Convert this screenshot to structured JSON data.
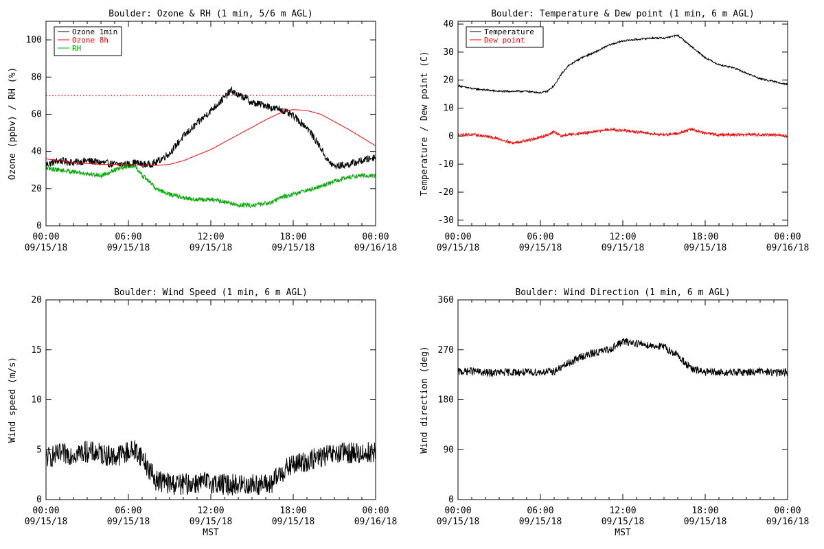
{
  "chart_data": [
    {
      "id": "ozone_rh",
      "type": "line",
      "title": "Boulder: Ozone & RH (1 min, 5/6 m AGL)",
      "xlabel": "",
      "ylabel": "Ozone (ppbv) / RH (%)",
      "ylim": [
        0,
        110
      ],
      "yticks": [
        0,
        20,
        40,
        60,
        80,
        100
      ],
      "xlim_hours": [
        0,
        24
      ],
      "xticks": [
        {
          "time": "00:00",
          "date": "09/15/18"
        },
        {
          "time": "06:00",
          "date": "09/15/18"
        },
        {
          "time": "12:00",
          "date": "09/15/18"
        },
        {
          "time": "18:00",
          "date": "09/15/18"
        },
        {
          "time": "00:00",
          "date": "09/16/18"
        }
      ],
      "reference_line": {
        "y": 70,
        "color": "#ff0000",
        "style": "dotted"
      },
      "legend": {
        "placement": "top-left"
      },
      "series": [
        {
          "name": "Ozone 1min",
          "color": "#000000",
          "noise": 2.0,
          "x": [
            0,
            1,
            2,
            3,
            4,
            5,
            6,
            6.5,
            7,
            7.5,
            8,
            9,
            10,
            11,
            12,
            13,
            13.5,
            14,
            14.5,
            15,
            16,
            16.5,
            17,
            17.5,
            18,
            18.5,
            19,
            20,
            20.5,
            21,
            22,
            23,
            24
          ],
          "y": [
            33,
            35,
            34,
            35,
            34,
            33,
            33,
            34,
            33,
            33,
            34,
            39,
            48,
            55,
            62,
            69,
            73,
            70,
            69,
            66,
            65,
            63,
            63,
            61,
            59,
            56,
            53,
            42,
            35,
            32,
            33,
            35,
            37
          ]
        },
        {
          "name": "Ozone 8h",
          "color": "#ff0000",
          "noise": 0,
          "x": [
            0,
            2,
            4,
            6,
            7,
            8,
            9,
            10,
            11,
            12,
            13,
            14,
            15,
            16,
            17,
            17.5,
            18,
            19,
            20,
            21,
            22,
            23,
            24
          ],
          "y": [
            36,
            34,
            33,
            33,
            32.5,
            32.5,
            33,
            35,
            38,
            41,
            45,
            49,
            53,
            57,
            60.5,
            62,
            62.5,
            62,
            60,
            56,
            52,
            47.5,
            43
          ]
        },
        {
          "name": "RH",
          "color": "#00aa00",
          "noise": 1.2,
          "x": [
            0,
            1,
            2,
            3,
            4,
            5,
            6,
            6.5,
            7,
            7.5,
            8,
            9,
            10,
            11,
            12,
            13,
            14,
            15,
            16,
            16.5,
            17,
            18,
            19,
            20,
            21,
            22,
            23,
            24
          ],
          "y": [
            31,
            30,
            29,
            28,
            27,
            30,
            32,
            32,
            27,
            24,
            20,
            17,
            15,
            14,
            14,
            13,
            11,
            11,
            12,
            13,
            15,
            17,
            19,
            21,
            24,
            26,
            27,
            27
          ]
        }
      ]
    },
    {
      "id": "temp_dew",
      "type": "line",
      "title": "Boulder: Temperature & Dew point (1 min, 6 m AGL)",
      "xlabel": "",
      "ylabel": "Temperature / Dew point (C)",
      "ylim": [
        -32,
        41
      ],
      "yticks": [
        -30,
        -20,
        -10,
        0,
        10,
        20,
        30,
        40
      ],
      "xlim_hours": [
        0,
        24
      ],
      "xticks": [
        {
          "time": "00:00",
          "date": "09/15/18"
        },
        {
          "time": "06:00",
          "date": "09/15/18"
        },
        {
          "time": "12:00",
          "date": "09/15/18"
        },
        {
          "time": "18:00",
          "date": "09/15/18"
        },
        {
          "time": "00:00",
          "date": "09/16/18"
        }
      ],
      "legend": {
        "placement": "top-left"
      },
      "series": [
        {
          "name": "Temperature",
          "color": "#000000",
          "noise": 0.3,
          "x": [
            0,
            1,
            2,
            3,
            4,
            5,
            6,
            6.5,
            7,
            7.5,
            8,
            9,
            10,
            11,
            12,
            13,
            14,
            15,
            16,
            17,
            18,
            19,
            20,
            21,
            22,
            23,
            24
          ],
          "y": [
            18,
            17,
            16.5,
            16,
            16,
            16,
            15.5,
            16,
            18,
            22,
            25,
            28,
            30,
            32.5,
            34,
            34.5,
            35,
            35,
            36,
            32,
            28,
            25.5,
            24.5,
            22.5,
            20.5,
            19.5,
            18.5
          ]
        },
        {
          "name": "Dew point",
          "color": "#ff0000",
          "noise": 0.5,
          "x": [
            0,
            1,
            2,
            3,
            4,
            5,
            6,
            6.5,
            7,
            7.5,
            8,
            9,
            10,
            11,
            12,
            13,
            14,
            15,
            16,
            17,
            18,
            19,
            20,
            21,
            22,
            23,
            24
          ],
          "y": [
            0.5,
            0.5,
            0,
            -1,
            -2.5,
            -1.5,
            -0.5,
            0.5,
            1.5,
            0,
            0.5,
            1,
            1.5,
            2.5,
            2,
            1.5,
            1,
            0.5,
            1,
            2.5,
            1,
            0.5,
            0.5,
            0.5,
            0.5,
            0.5,
            0
          ]
        }
      ]
    },
    {
      "id": "wind_speed",
      "type": "line",
      "title": "Boulder: Wind Speed (1 min, 6 m AGL)",
      "xlabel": "MST",
      "ylabel": "Wind speed (m/s)",
      "ylim": [
        0,
        20
      ],
      "yticks": [
        0,
        5,
        10,
        15,
        20
      ],
      "xlim_hours": [
        0,
        24
      ],
      "xticks": [
        {
          "time": "00:00",
          "date": "09/15/18"
        },
        {
          "time": "06:00",
          "date": "09/15/18"
        },
        {
          "time": "12:00",
          "date": "09/15/18"
        },
        {
          "time": "18:00",
          "date": "09/15/18"
        },
        {
          "time": "00:00",
          "date": "09/16/18"
        }
      ],
      "series": [
        {
          "name": "",
          "color": "#000000",
          "noise": 1.1,
          "x": [
            0,
            1,
            2,
            3,
            4,
            5,
            6,
            6.5,
            7,
            7.5,
            8,
            9,
            10,
            11,
            12,
            13,
            14,
            15,
            16,
            16.5,
            17,
            18,
            19,
            20,
            21,
            22,
            23,
            24
          ],
          "y": [
            4.2,
            4.5,
            4.6,
            4.8,
            4.6,
            4.3,
            4.8,
            5.0,
            4.3,
            3.0,
            2.0,
            1.6,
            1.5,
            1.7,
            1.7,
            1.5,
            1.5,
            1.5,
            1.5,
            1.6,
            2.6,
            3.5,
            3.8,
            4.3,
            4.5,
            4.7,
            4.6,
            4.8
          ]
        }
      ]
    },
    {
      "id": "wind_dir",
      "type": "line",
      "title": "Boulder: Wind Direction (1 min, 6 m AGL)",
      "xlabel": "MST",
      "ylabel": "Wind direction (deg)",
      "ylim": [
        0,
        360
      ],
      "yticks": [
        0,
        90,
        180,
        270,
        360
      ],
      "xlim_hours": [
        0,
        24
      ],
      "xticks": [
        {
          "time": "00:00",
          "date": "09/15/18"
        },
        {
          "time": "06:00",
          "date": "09/15/18"
        },
        {
          "time": "12:00",
          "date": "09/15/18"
        },
        {
          "time": "18:00",
          "date": "09/15/18"
        },
        {
          "time": "00:00",
          "date": "09/16/18"
        }
      ],
      "series": [
        {
          "name": "",
          "color": "#000000",
          "noise": 7,
          "x": [
            0,
            1,
            2,
            3,
            4,
            5,
            6,
            7,
            7.5,
            8,
            9,
            10,
            11,
            12,
            13,
            14,
            15,
            16,
            17,
            18,
            19,
            20,
            21,
            22,
            23,
            24
          ],
          "y": [
            230,
            232,
            228,
            229,
            230,
            229,
            230,
            231,
            238,
            245,
            258,
            265,
            270,
            285,
            282,
            278,
            275,
            260,
            235,
            230,
            229,
            229,
            230,
            231,
            229,
            230
          ]
        }
      ]
    }
  ]
}
